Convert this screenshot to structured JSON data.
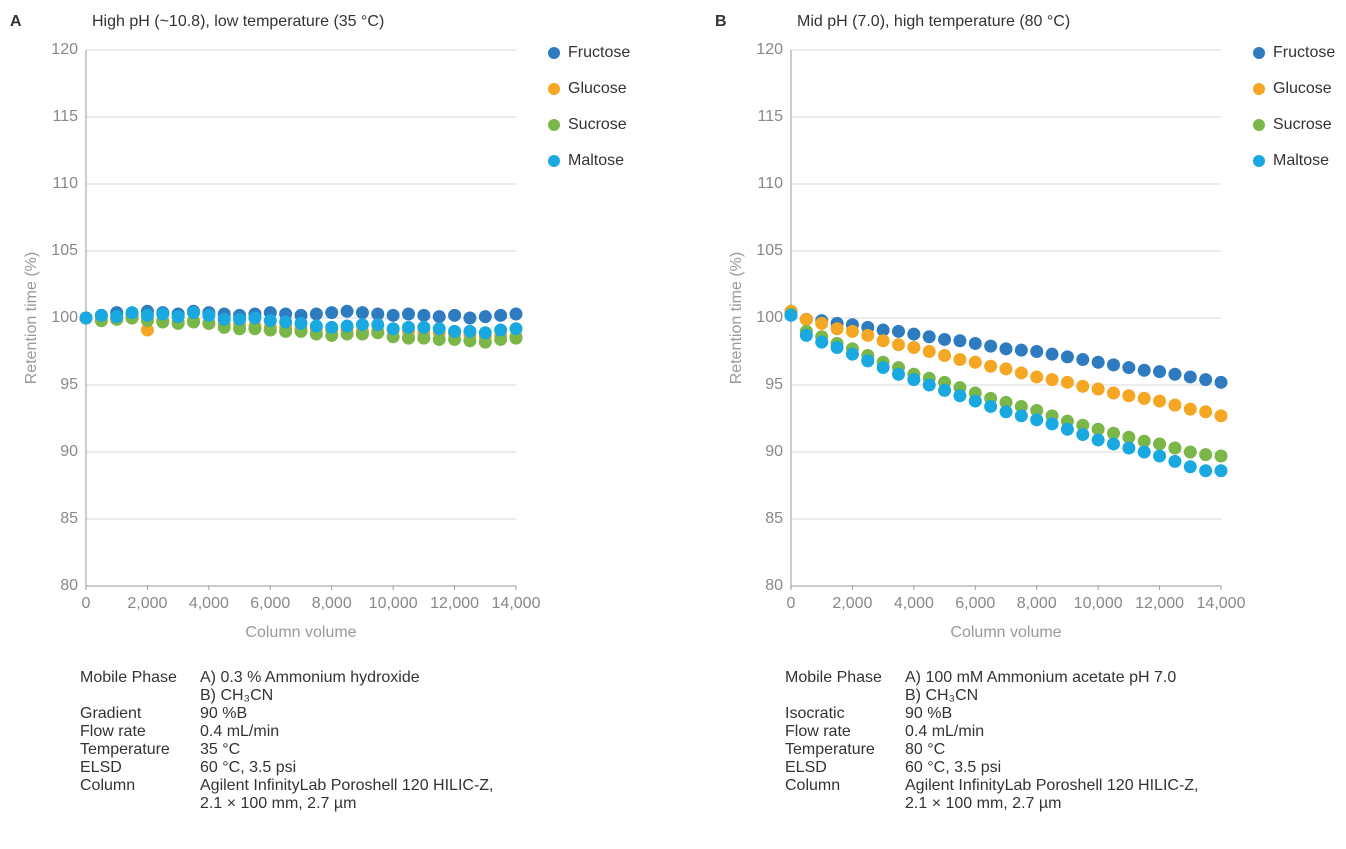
{
  "chart_data": [
    {
      "type": "scatter",
      "label": "A",
      "title": "High pH (~10.8), low temperature (35 °C)",
      "xlabel": "Column volume",
      "ylabel": "Retention time  (%)",
      "x": [
        0,
        500,
        1000,
        1500,
        2000,
        2500,
        3000,
        3500,
        4000,
        4500,
        5000,
        5500,
        6000,
        6500,
        7000,
        7500,
        8000,
        8500,
        9000,
        9500,
        10000,
        10500,
        11000,
        11500,
        12000,
        12500,
        13000,
        13500,
        14000
      ],
      "series": [
        {
          "name": "Fructose",
          "color": "#2e7bbf",
          "values": [
            100,
            100.2,
            100.4,
            100.3,
            100.5,
            100.4,
            100.3,
            100.5,
            100.4,
            100.3,
            100.2,
            100.3,
            100.4,
            100.3,
            100.2,
            100.3,
            100.4,
            100.5,
            100.4,
            100.3,
            100.2,
            100.3,
            100.2,
            100.1,
            100.2,
            100.0,
            100.1,
            100.2,
            100.3
          ]
        },
        {
          "name": "Glucose",
          "color": "#f5a623",
          "values": [
            100,
            99.8,
            99.9,
            100.0,
            99.1,
            99.8,
            99.7,
            99.8,
            99.6,
            99.5,
            99.5,
            99.4,
            99.3,
            99.3,
            99.2,
            99.2,
            99.1,
            99.1,
            99.0,
            99.0,
            99.1,
            99.0,
            98.9,
            98.9,
            98.8,
            98.7,
            98.6,
            98.7,
            98.6
          ]
        },
        {
          "name": "Sucrose",
          "color": "#7ab648",
          "values": [
            100,
            99.8,
            99.9,
            100,
            99.8,
            99.7,
            99.6,
            99.7,
            99.6,
            99.3,
            99.2,
            99.2,
            99.1,
            99.0,
            99.0,
            98.8,
            98.7,
            98.8,
            98.8,
            98.9,
            98.6,
            98.5,
            98.5,
            98.4,
            98.4,
            98.3,
            98.2,
            98.4,
            98.5
          ]
        },
        {
          "name": "Maltose",
          "color": "#1aa8e0",
          "values": [
            100,
            100.2,
            100.1,
            100.4,
            100.2,
            100.3,
            100.1,
            100.4,
            100.2,
            99.9,
            99.9,
            100.0,
            99.8,
            99.7,
            99.6,
            99.4,
            99.3,
            99.4,
            99.5,
            99.5,
            99.2,
            99.3,
            99.3,
            99.2,
            99.0,
            99.0,
            98.9,
            99.1,
            99.2
          ]
        }
      ],
      "xlim": [
        0,
        14000
      ],
      "ylim": [
        80,
        120
      ],
      "xticks": [
        0,
        {
          "value": 2000,
          "label": "2,000"
        },
        {
          "value": 4000,
          "label": "4,000"
        },
        {
          "value": 6000,
          "label": "6,000"
        },
        {
          "value": 8000,
          "label": "8,000"
        },
        {
          "value": 10000,
          "label": "10,000"
        },
        {
          "value": 12000,
          "label": "12,000"
        },
        {
          "value": 14000,
          "label": "14,000"
        }
      ],
      "yticks": [
        80,
        85,
        90,
        95,
        100,
        105,
        110,
        115,
        120
      ],
      "grid": true,
      "legend": "right",
      "conditions": [
        {
          "label": "Mobile Phase",
          "lines": [
            "A) 0.3 % Ammonium hydroxide",
            "B) CH₃CN"
          ]
        },
        {
          "label": "Gradient",
          "lines": [
            "90 %B"
          ]
        },
        {
          "label": "Flow rate",
          "lines": [
            "0.4 mL/min"
          ]
        },
        {
          "label": "Temperature",
          "lines": [
            "35 °C"
          ]
        },
        {
          "label": "ELSD",
          "lines": [
            "60 °C, 3.5 psi"
          ]
        },
        {
          "label": "Column",
          "lines": [
            "Agilent InfinityLab Poroshell 120 HILIC-Z,",
            "2.1 × 100 mm, 2.7 µm"
          ]
        }
      ]
    },
    {
      "type": "scatter",
      "label": "B",
      "title": "Mid pH (7.0), high temperature (80 °C)",
      "xlabel": "Column volume",
      "ylabel": "Retention time  (%)",
      "x": [
        0,
        500,
        1000,
        1500,
        2000,
        2500,
        3000,
        3500,
        4000,
        4500,
        5000,
        5500,
        6000,
        6500,
        7000,
        7500,
        8000,
        8500,
        9000,
        9500,
        10000,
        10500,
        11000,
        11500,
        12000,
        12500,
        13000,
        13500,
        14000
      ],
      "series": [
        {
          "name": "Fructose",
          "color": "#2e7bbf",
          "values": [
            100.5,
            99.9,
            99.8,
            99.6,
            99.5,
            99.3,
            99.1,
            99.0,
            98.8,
            98.6,
            98.4,
            98.3,
            98.1,
            97.9,
            97.7,
            97.6,
            97.5,
            97.3,
            97.1,
            96.9,
            96.7,
            96.5,
            96.3,
            96.1,
            96.0,
            95.8,
            95.6,
            95.4,
            95.2
          ]
        },
        {
          "name": "Glucose",
          "color": "#f5a623",
          "values": [
            100.5,
            99.9,
            99.6,
            99.2,
            99.0,
            98.7,
            98.3,
            98.0,
            97.8,
            97.5,
            97.2,
            96.9,
            96.7,
            96.4,
            96.2,
            95.9,
            95.6,
            95.4,
            95.2,
            94.9,
            94.7,
            94.4,
            94.2,
            94.0,
            93.8,
            93.5,
            93.2,
            93.0,
            92.7
          ]
        },
        {
          "name": "Sucrose",
          "color": "#7ab648",
          "values": [
            100.3,
            99.0,
            98.6,
            98.1,
            97.7,
            97.2,
            96.7,
            96.3,
            95.8,
            95.5,
            95.2,
            94.8,
            94.4,
            94.0,
            93.7,
            93.4,
            93.1,
            92.7,
            92.3,
            92.0,
            91.7,
            91.4,
            91.1,
            90.8,
            90.6,
            90.3,
            90.0,
            89.8,
            89.7
          ]
        },
        {
          "name": "Maltose",
          "color": "#1aa8e0",
          "values": [
            100.2,
            98.7,
            98.2,
            97.8,
            97.3,
            96.8,
            96.3,
            95.8,
            95.4,
            95.0,
            94.6,
            94.2,
            93.8,
            93.4,
            93.0,
            92.7,
            92.4,
            92.1,
            91.7,
            91.3,
            90.9,
            90.6,
            90.3,
            90.0,
            89.7,
            89.3,
            88.9,
            88.6,
            88.6
          ]
        }
      ],
      "xlim": [
        0,
        14000
      ],
      "ylim": [
        80,
        120
      ],
      "xticks": [
        0,
        {
          "value": 2000,
          "label": "2,000"
        },
        {
          "value": 4000,
          "label": "4,000"
        },
        {
          "value": 6000,
          "label": "6,000"
        },
        {
          "value": 8000,
          "label": "8,000"
        },
        {
          "value": 10000,
          "label": "10,000"
        },
        {
          "value": 12000,
          "label": "12,000"
        },
        {
          "value": 14000,
          "label": "14,000"
        }
      ],
      "yticks": [
        80,
        85,
        90,
        95,
        100,
        105,
        110,
        115,
        120
      ],
      "grid": true,
      "legend": "right",
      "conditions": [
        {
          "label": "Mobile Phase",
          "lines": [
            "A) 100 mM Ammonium acetate pH 7.0",
            "B) CH₃CN"
          ]
        },
        {
          "label": "Isocratic",
          "lines": [
            "90 %B"
          ]
        },
        {
          "label": "Flow rate",
          "lines": [
            "0.4 mL/min"
          ]
        },
        {
          "label": "Temperature",
          "lines": [
            "80 °C"
          ]
        },
        {
          "label": "ELSD",
          "lines": [
            "60 °C, 3.5 psi"
          ]
        },
        {
          "label": "Column",
          "lines": [
            "Agilent InfinityLab Poroshell 120 HILIC-Z,",
            "2.1 × 100 mm, 2.7 µm"
          ]
        }
      ]
    }
  ]
}
